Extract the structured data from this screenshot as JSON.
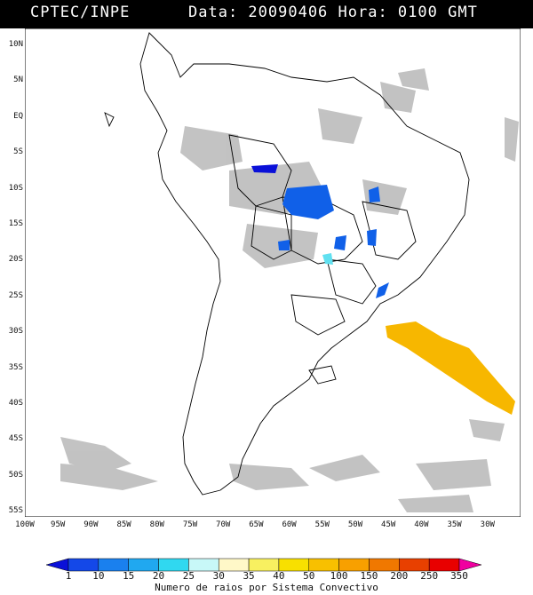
{
  "header": {
    "source": "CPTEC/INPE",
    "datetime": "Data: 20090406 Hora: 0100 GMT"
  },
  "map": {
    "lat_labels": [
      "10N",
      "5N",
      "EQ",
      "5S",
      "10S",
      "15S",
      "20S",
      "25S",
      "30S",
      "35S",
      "40S",
      "45S",
      "50S",
      "55S"
    ],
    "lon_labels": [
      "100W",
      "95W",
      "90W",
      "85W",
      "80W",
      "75W",
      "70W",
      "65W",
      "60W",
      "55W",
      "50W",
      "45W",
      "40W",
      "35W",
      "30W"
    ],
    "colors": {
      "cloud": "#b8b8b8",
      "coast": "#000000",
      "blue_cells": "#1060e8",
      "dark_blue_cell": "#0a10d8",
      "cyan_cell": "#60e0f0",
      "yellow_band": "#f7b700"
    }
  },
  "colorbar": {
    "title": "Numero de raios por Sistema Convectivo",
    "labels": [
      "1",
      "10",
      "15",
      "20",
      "25",
      "30",
      "35",
      "40",
      "50",
      "100",
      "150",
      "200",
      "250",
      "350"
    ],
    "colors": [
      "#0a10d8",
      "#1448e8",
      "#1a80ee",
      "#20a8f0",
      "#30d8f0",
      "#c8f8f8",
      "#fff8c8",
      "#f8f060",
      "#f8e000",
      "#f8c000",
      "#f8a000",
      "#f07800",
      "#e84000",
      "#e80000",
      "#f000a0"
    ]
  }
}
